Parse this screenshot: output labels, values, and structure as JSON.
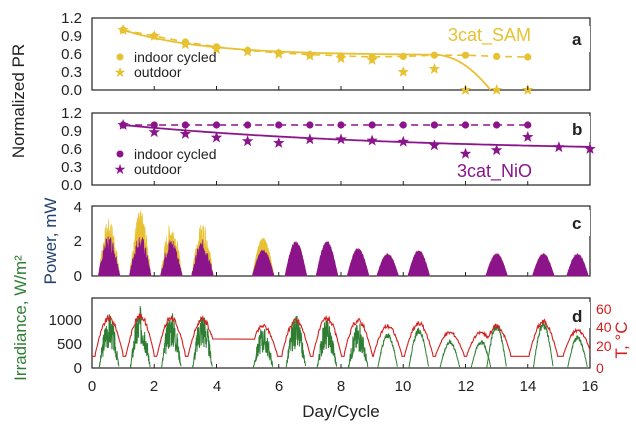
{
  "colors": {
    "sam": "#E8C132",
    "nio": "#8B148B",
    "irradiance": "#2E7D32",
    "temperature": "#D3201F",
    "power_axis": "#1F3F6F",
    "frame": "#222222"
  },
  "x_axis": {
    "label": "Day/Cycle",
    "ticks": [
      "0",
      "2",
      "4",
      "6",
      "8",
      "10",
      "12",
      "14",
      "16"
    ],
    "range": [
      0,
      16
    ]
  },
  "shared_labels": {
    "normalized_pr": "Normalized PR"
  },
  "chart_data": [
    {
      "panel": "a",
      "type": "scatter",
      "device_label": "3cat_SAM",
      "ylabel": "Normalized PR",
      "ylim": [
        0,
        1.2
      ],
      "ytick_labels": [
        "0.0",
        "0.3",
        "0.6",
        "0.9",
        "1.2"
      ],
      "legend": {
        "position": "left",
        "entries": [
          "indoor cycled",
          "outdoor"
        ]
      },
      "series": [
        {
          "name": "indoor cycled",
          "marker": "circle",
          "line": "dashed",
          "x": [
            1,
            2,
            3,
            4,
            5,
            6,
            7,
            8,
            9,
            10,
            11,
            12,
            13,
            14
          ],
          "y": [
            1.0,
            0.9,
            0.8,
            0.72,
            0.66,
            0.62,
            0.59,
            0.57,
            0.55,
            0.56,
            0.58,
            0.58,
            0.56,
            0.55
          ]
        },
        {
          "name": "outdoor",
          "marker": "star",
          "line": "solid",
          "x": [
            1,
            2,
            3,
            4,
            5,
            6,
            7,
            8,
            9,
            10,
            11,
            12,
            13,
            14
          ],
          "y": [
            1.0,
            0.9,
            0.76,
            0.68,
            0.64,
            0.6,
            0.57,
            0.53,
            0.5,
            0.3,
            0.35,
            0.0,
            0.0,
            0.0
          ]
        }
      ]
    },
    {
      "panel": "b",
      "type": "scatter",
      "device_label": "3cat_NiO",
      "ylim": [
        0,
        1.2
      ],
      "ytick_labels": [
        "0.0",
        "0.3",
        "0.6",
        "0.9",
        "1.2"
      ],
      "legend": {
        "position": "left",
        "entries": [
          "indoor cycled",
          "outdoor"
        ]
      },
      "series": [
        {
          "name": "indoor cycled",
          "marker": "circle",
          "line": "dashed",
          "x": [
            1,
            2,
            3,
            4,
            5,
            6,
            7,
            8,
            9,
            10,
            11,
            12,
            13,
            14
          ],
          "y": [
            1.0,
            1.0,
            1.0,
            1.0,
            1.0,
            1.0,
            1.0,
            1.0,
            1.0,
            1.0,
            1.0,
            1.0,
            1.0,
            1.0
          ]
        },
        {
          "name": "outdoor",
          "marker": "star",
          "line": "solid",
          "x": [
            1,
            2,
            3,
            4,
            5,
            6,
            7,
            8,
            9,
            10,
            11,
            12,
            13,
            14,
            15,
            16
          ],
          "y": [
            1.0,
            0.88,
            0.85,
            0.79,
            0.73,
            0.7,
            0.76,
            0.76,
            0.74,
            0.72,
            0.66,
            0.52,
            0.58,
            0.8,
            0.63,
            0.6
          ]
        }
      ]
    },
    {
      "panel": "c",
      "type": "area",
      "ylabel": "Power, mW",
      "ylim": [
        0,
        4
      ],
      "ytick_labels": [
        "0",
        "2",
        "4"
      ],
      "series": [
        {
          "name": "3cat_SAM",
          "peaks": [
            3.3,
            3.8,
            3.1,
            3.1,
            2.2,
            2.0,
            1.8,
            1.6,
            1.3,
            1.5,
            1.3,
            1.3,
            1.1
          ]
        },
        {
          "name": "3cat_NiO",
          "peaks": [
            2.4,
            2.4,
            2.2,
            2.1,
            1.5,
            2.0,
            2.0,
            1.6,
            1.3,
            1.5,
            1.3,
            1.3,
            1.3
          ]
        }
      ],
      "day_centers": [
        0.55,
        1.55,
        2.55,
        3.55,
        5.5,
        6.55,
        7.55,
        8.55,
        9.5,
        10.5,
        13.0,
        14.5,
        15.6
      ]
    },
    {
      "panel": "d",
      "type": "line",
      "ylabel": "Irradiance, W/m²",
      "y2label": "T, °C",
      "ylim": [
        0,
        1500
      ],
      "y2lim": [
        0,
        60
      ],
      "ytick_labels": [
        "0",
        "500",
        "1000"
      ],
      "y2tick_labels": [
        "0",
        "20",
        "40",
        "60"
      ],
      "series": [
        {
          "name": "irradiance",
          "peak_values": [
            1200,
            1350,
            1250,
            1250,
            900,
            1150,
            1100,
            1000,
            750,
            850,
            600,
            600,
            950,
            1000,
            700
          ]
        },
        {
          "name": "temperature",
          "peak_values": [
            45,
            47,
            45,
            44,
            38,
            43,
            45,
            43,
            38,
            40,
            32,
            32,
            38,
            42,
            34
          ]
        }
      ],
      "day_centers": [
        0.55,
        1.55,
        2.55,
        3.55,
        5.5,
        6.55,
        7.55,
        8.55,
        9.5,
        10.5,
        11.5,
        12.5,
        13.0,
        14.5,
        15.6
      ]
    }
  ]
}
